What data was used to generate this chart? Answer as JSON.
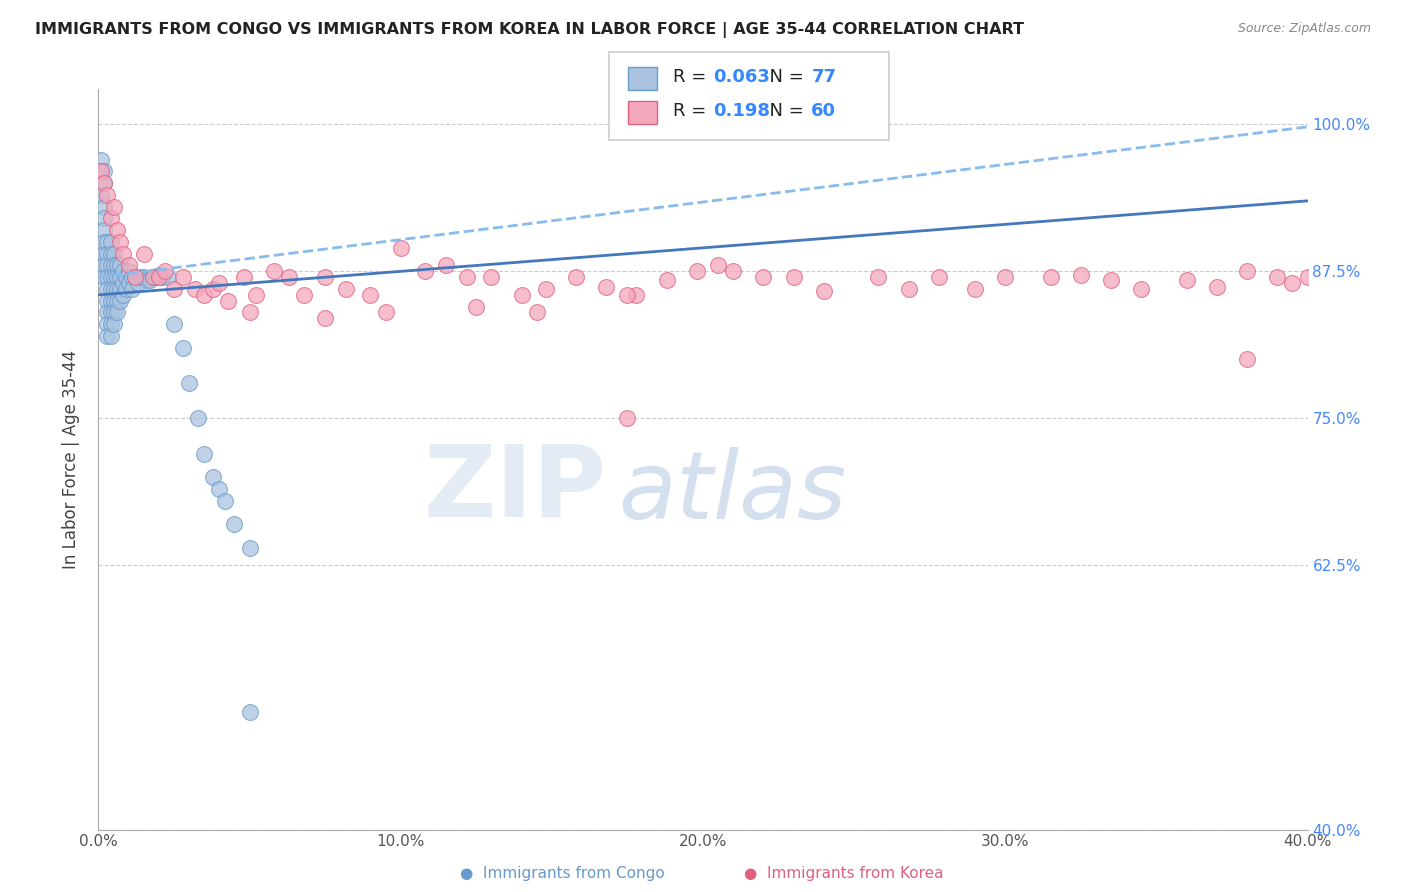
{
  "title": "IMMIGRANTS FROM CONGO VS IMMIGRANTS FROM KOREA IN LABOR FORCE | AGE 35-44 CORRELATION CHART",
  "source": "Source: ZipAtlas.com",
  "ylabel": "In Labor Force | Age 35-44",
  "xlim": [
    0.0,
    0.4
  ],
  "ylim": [
    0.4,
    1.03
  ],
  "yticks": [
    0.4,
    0.625,
    0.75,
    0.875,
    1.0
  ],
  "ytick_labels": [
    "40.0%",
    "62.5%",
    "75.0%",
    "87.5%",
    "100.0%"
  ],
  "xticks": [
    0.0,
    0.1,
    0.2,
    0.3,
    0.4
  ],
  "xtick_labels": [
    "0.0%",
    "10.0%",
    "20.0%",
    "30.0%",
    "40.0%"
  ],
  "congo_color": "#aac4e0",
  "korea_color": "#f4a8bc",
  "congo_edge": "#6699cc",
  "korea_edge": "#e06080",
  "congo_line_color": "#4477bb",
  "korea_line_color": "#e06080",
  "R_congo": 0.063,
  "N_congo": 77,
  "R_korea": 0.198,
  "N_korea": 60,
  "congo_x": [
    0.001,
    0.001,
    0.001,
    0.002,
    0.002,
    0.002,
    0.002,
    0.002,
    0.002,
    0.002,
    0.002,
    0.002,
    0.003,
    0.003,
    0.003,
    0.003,
    0.003,
    0.003,
    0.003,
    0.003,
    0.003,
    0.004,
    0.004,
    0.004,
    0.004,
    0.004,
    0.004,
    0.004,
    0.004,
    0.004,
    0.005,
    0.005,
    0.005,
    0.005,
    0.005,
    0.005,
    0.005,
    0.006,
    0.006,
    0.006,
    0.006,
    0.006,
    0.007,
    0.007,
    0.007,
    0.007,
    0.008,
    0.008,
    0.008,
    0.009,
    0.009,
    0.01,
    0.01,
    0.011,
    0.011,
    0.012,
    0.013,
    0.014,
    0.015,
    0.016,
    0.017,
    0.018,
    0.019,
    0.02,
    0.021,
    0.023,
    0.025,
    0.028,
    0.03,
    0.033,
    0.035,
    0.038,
    0.04,
    0.042,
    0.045,
    0.05,
    0.05
  ],
  "congo_y": [
    0.97,
    0.96,
    0.94,
    0.96,
    0.95,
    0.93,
    0.92,
    0.91,
    0.9,
    0.89,
    0.88,
    0.87,
    0.9,
    0.89,
    0.88,
    0.87,
    0.86,
    0.85,
    0.84,
    0.83,
    0.82,
    0.9,
    0.89,
    0.88,
    0.87,
    0.86,
    0.85,
    0.84,
    0.83,
    0.82,
    0.89,
    0.88,
    0.87,
    0.86,
    0.85,
    0.84,
    0.83,
    0.88,
    0.87,
    0.86,
    0.85,
    0.84,
    0.88,
    0.87,
    0.86,
    0.85,
    0.875,
    0.865,
    0.855,
    0.87,
    0.86,
    0.875,
    0.865,
    0.87,
    0.86,
    0.87,
    0.865,
    0.87,
    0.87,
    0.868,
    0.868,
    0.87,
    0.87,
    0.872,
    0.87,
    0.87,
    0.83,
    0.81,
    0.78,
    0.75,
    0.72,
    0.7,
    0.69,
    0.68,
    0.66,
    0.64,
    0.5
  ],
  "korea_x": [
    0.001,
    0.002,
    0.003,
    0.004,
    0.005,
    0.006,
    0.007,
    0.008,
    0.01,
    0.012,
    0.015,
    0.018,
    0.02,
    0.022,
    0.025,
    0.028,
    0.032,
    0.035,
    0.038,
    0.04,
    0.043,
    0.048,
    0.052,
    0.058,
    0.063,
    0.068,
    0.075,
    0.082,
    0.09,
    0.1,
    0.108,
    0.115,
    0.122,
    0.13,
    0.14,
    0.148,
    0.158,
    0.168,
    0.178,
    0.188,
    0.198,
    0.21,
    0.22,
    0.23,
    0.24,
    0.258,
    0.268,
    0.278,
    0.29,
    0.3,
    0.315,
    0.325,
    0.335,
    0.345,
    0.36,
    0.37,
    0.38,
    0.39,
    0.395,
    0.4
  ],
  "korea_y": [
    0.96,
    0.95,
    0.94,
    0.92,
    0.93,
    0.91,
    0.9,
    0.89,
    0.88,
    0.87,
    0.89,
    0.87,
    0.87,
    0.875,
    0.86,
    0.87,
    0.86,
    0.855,
    0.86,
    0.865,
    0.85,
    0.87,
    0.855,
    0.875,
    0.87,
    0.855,
    0.87,
    0.86,
    0.855,
    0.895,
    0.875,
    0.88,
    0.87,
    0.87,
    0.855,
    0.86,
    0.87,
    0.862,
    0.855,
    0.868,
    0.875,
    0.875,
    0.87,
    0.87,
    0.858,
    0.87,
    0.86,
    0.87,
    0.86,
    0.87,
    0.87,
    0.872,
    0.868,
    0.86,
    0.868,
    0.862,
    0.875,
    0.87,
    0.865,
    0.87
  ],
  "korea_extra_x": [
    0.05,
    0.075,
    0.095,
    0.125,
    0.145,
    0.175,
    0.205,
    0.175,
    0.38
  ],
  "korea_extra_y": [
    0.84,
    0.835,
    0.84,
    0.845,
    0.84,
    0.855,
    0.88,
    0.75,
    0.8
  ]
}
